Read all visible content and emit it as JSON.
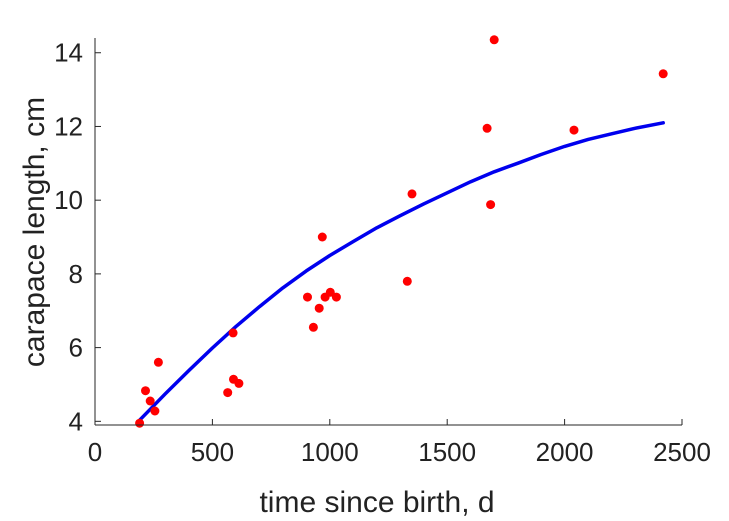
{
  "chart_data": {
    "type": "scatter",
    "title": "",
    "xlabel": "time since birth, d",
    "ylabel": "carapace length, cm",
    "xlim": [
      0,
      2500
    ],
    "ylim": [
      3.9,
      14.4
    ],
    "xticks": [
      0,
      500,
      1000,
      1500,
      2000,
      2500
    ],
    "yticks": [
      4,
      6,
      8,
      10,
      12,
      14
    ],
    "grid": false,
    "legend": "none",
    "series": [
      {
        "type": "scatter",
        "color": "#ff0000",
        "points": [
          [
            190,
            3.95
          ],
          [
            215,
            4.83
          ],
          [
            235,
            4.55
          ],
          [
            255,
            4.28
          ],
          [
            270,
            5.6
          ],
          [
            565,
            4.78
          ],
          [
            588,
            6.4
          ],
          [
            590,
            5.14
          ],
          [
            613,
            5.03
          ],
          [
            905,
            7.37
          ],
          [
            930,
            6.55
          ],
          [
            955,
            7.07
          ],
          [
            968,
            9.0
          ],
          [
            980,
            7.37
          ],
          [
            1002,
            7.5
          ],
          [
            1028,
            7.37
          ],
          [
            1330,
            7.8
          ],
          [
            1350,
            10.17
          ],
          [
            1670,
            11.95
          ],
          [
            1685,
            9.88
          ],
          [
            1700,
            14.35
          ],
          [
            2040,
            11.9
          ],
          [
            2420,
            13.43
          ]
        ]
      },
      {
        "type": "line",
        "color": "#0000ee",
        "points": [
          [
            190,
            4.03
          ],
          [
            300,
            4.75
          ],
          [
            400,
            5.38
          ],
          [
            500,
            5.99
          ],
          [
            600,
            6.57
          ],
          [
            700,
            7.11
          ],
          [
            800,
            7.62
          ],
          [
            900,
            8.08
          ],
          [
            1000,
            8.5
          ],
          [
            1100,
            8.88
          ],
          [
            1200,
            9.25
          ],
          [
            1300,
            9.58
          ],
          [
            1400,
            9.9
          ],
          [
            1500,
            10.2
          ],
          [
            1600,
            10.5
          ],
          [
            1700,
            10.77
          ],
          [
            1800,
            11.0
          ],
          [
            1900,
            11.24
          ],
          [
            2000,
            11.46
          ],
          [
            2100,
            11.65
          ],
          [
            2200,
            11.8
          ],
          [
            2300,
            11.95
          ],
          [
            2420,
            12.1
          ]
        ]
      }
    ]
  }
}
